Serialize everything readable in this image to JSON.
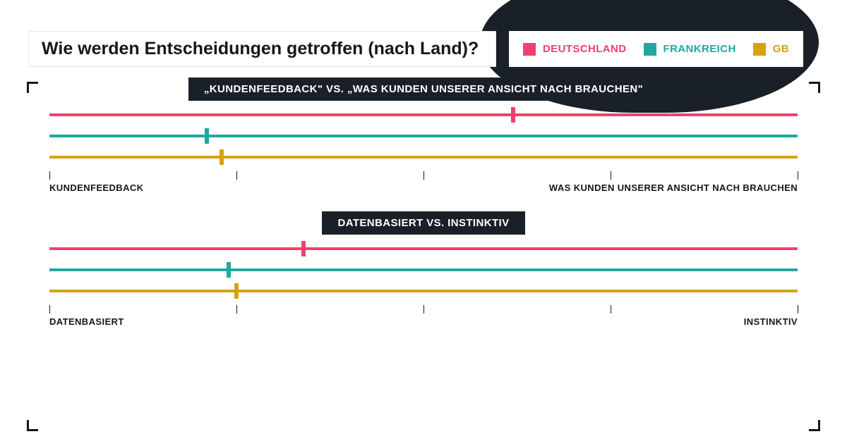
{
  "title": "Wie werden Entscheidungen getroffen (nach Land)?",
  "colors": {
    "germany": "#f43f6e",
    "france": "#1fa8a0",
    "gb": "#d8a20b",
    "dark": "#1a2028",
    "text": "#14171c",
    "white": "#ffffff"
  },
  "legend": {
    "germany": "Deutschland",
    "france": "Frankreich",
    "gb": "GB"
  },
  "line_thickness": 4,
  "mark_width": 6,
  "mark_height": 22,
  "tick_positions_pct": [
    0,
    25,
    50,
    75,
    100
  ],
  "sections": [
    {
      "title": "„Kundenfeedback\" vs. „Was Kunden unserer Ansicht nach brauchen\"",
      "left_label": "Kundenfeedback",
      "right_label": "was Kunden unserer Ansicht nach brauchen",
      "values": {
        "germany": 62,
        "france": 21,
        "gb": 23
      }
    },
    {
      "title": "datenbasiert vs. instinktiv",
      "left_label": "datenbasiert",
      "right_label": "instinktiv",
      "values": {
        "germany": 34,
        "france": 24,
        "gb": 25
      }
    }
  ]
}
